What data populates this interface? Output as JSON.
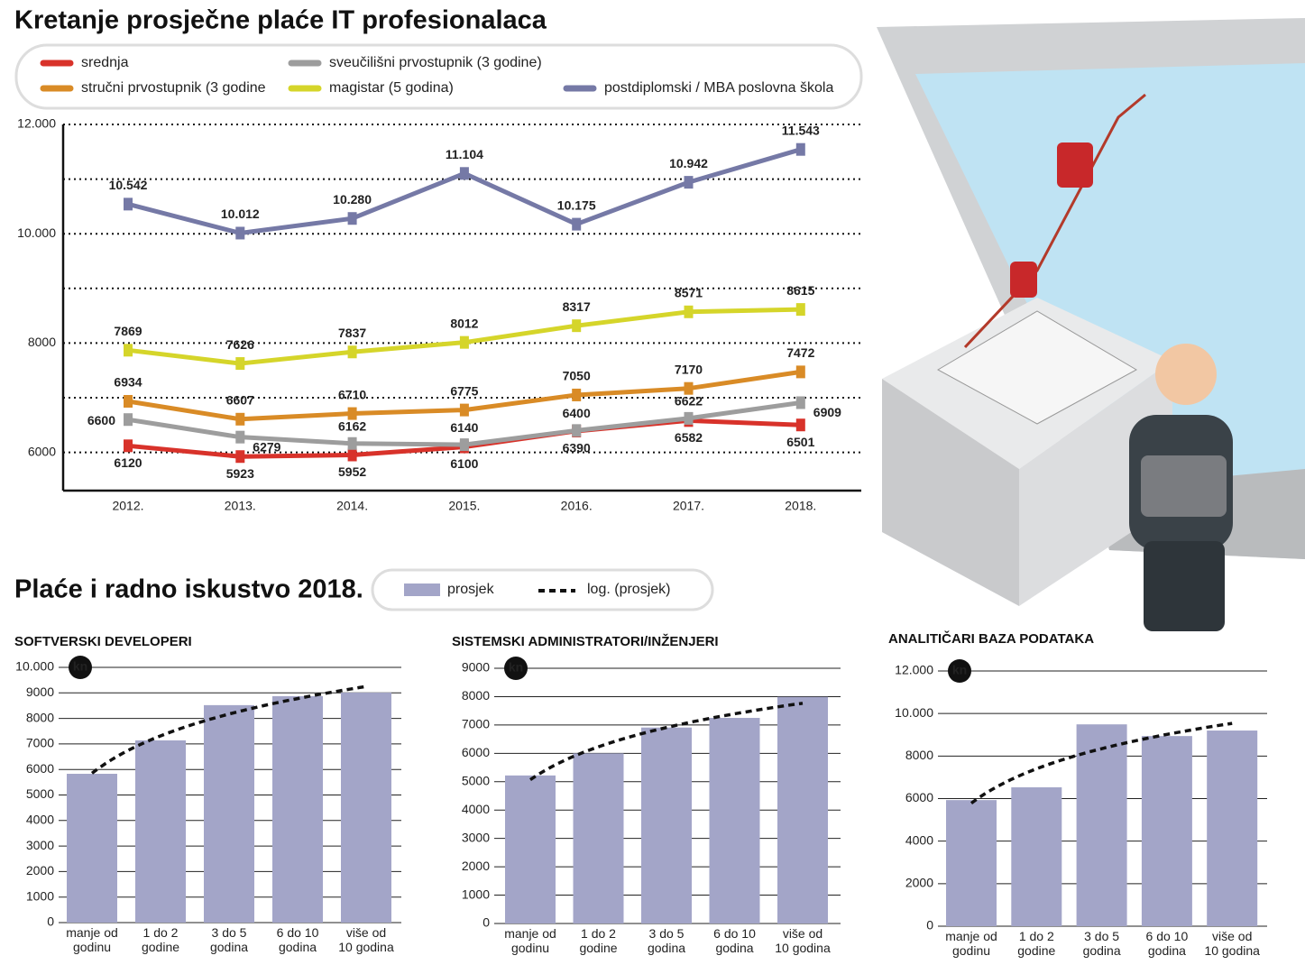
{
  "section": {
    "title": "Plaće i radno iskustvo 2018.",
    "bar_legend": "prosjek",
    "trend_legend": "log. (prosjek)"
  },
  "chart_data": [
    {
      "type": "line",
      "title": "Kretanje prosječne plaće IT profesionalaca",
      "categories": [
        "2012.",
        "2013.",
        "2014.",
        "2015.",
        "2016.",
        "2017.",
        "2018."
      ],
      "series": [
        {
          "name": "srednja",
          "color": "#d8322a",
          "values": [
            6120,
            5923,
            5952,
            6100,
            6390,
            6582,
            6501
          ]
        },
        {
          "name": "stručni prvostupnik (3 godine",
          "color": "#d98b26",
          "values": [
            6934,
            6607,
            6710,
            6775,
            7050,
            7170,
            7472
          ]
        },
        {
          "name": "sveučilišni prvostupnik (3 godine)",
          "color": "#9d9d9d",
          "values": [
            6600,
            6279,
            6162,
            6140,
            6400,
            6622,
            6909
          ]
        },
        {
          "name": "magistar (5 godina)",
          "color": "#d5d52a",
          "values": [
            7869,
            7626,
            7837,
            8012,
            8317,
            8571,
            8615
          ]
        },
        {
          "name": "postdiplomski / MBA poslovna škola",
          "color": "#7579a6",
          "values": [
            10542,
            10012,
            10280,
            11104,
            10175,
            10942,
            11543
          ],
          "value_labels": [
            "10.542",
            "10.012",
            "10.280",
            "11.104",
            "10.175",
            "10.942",
            "11.543"
          ]
        }
      ],
      "ylim": [
        5300,
        12000
      ],
      "yticks": [
        6000,
        8000,
        {
          "value": 10000,
          "label": "10.000"
        },
        {
          "value": 12000,
          "label": "12.000"
        }
      ],
      "minor_yticks": [
        7000,
        9000,
        11000
      ],
      "grid": true
    },
    {
      "type": "bar",
      "title": "SOFTVERSKI DEVELOPERI",
      "unit": "kn",
      "color": "#a3a5c8",
      "trend": "log",
      "categories": [
        "manje od\ngodinu",
        "1 do 2\ngodine",
        "3 do 5\ngodina",
        "6 do 10\ngodina",
        "više od\n10 godina"
      ],
      "values": [
        5830,
        7140,
        8520,
        8870,
        9010
      ],
      "ylim": [
        0,
        10000
      ],
      "yticks": [
        0,
        1000,
        2000,
        3000,
        4000,
        5000,
        6000,
        7000,
        8000,
        9000,
        {
          "value": 10000,
          "label": "10.000"
        }
      ],
      "grid": true
    },
    {
      "type": "bar",
      "title": "SISTEMSKI ADMINISTRATORI/INŽENJERI",
      "unit": "kn",
      "color": "#a3a5c8",
      "trend": "log",
      "categories": [
        "manje od\ngodinu",
        "1 do 2\ngodine",
        "3 do 5\ngodina",
        "6 do 10\ngodina",
        "više od\n10 godina"
      ],
      "values": [
        5220,
        6000,
        6910,
        7250,
        7990
      ],
      "ylim": [
        0,
        9000
      ],
      "yticks": [
        0,
        1000,
        2000,
        3000,
        4000,
        5000,
        6000,
        7000,
        8000,
        9000
      ],
      "grid": true
    },
    {
      "type": "bar",
      "title": "ANALITIČARI BAZA PODATAKA",
      "unit": "kn",
      "color": "#a3a5c8",
      "trend": "log",
      "categories": [
        "manje od\ngodinu",
        "1 do 2\ngodine",
        "3 do 5\ngodina",
        "6 do 10\ngodina",
        "više od\n10 godina"
      ],
      "values": [
        5930,
        6530,
        9490,
        8940,
        9200
      ],
      "ylim": [
        0,
        12000
      ],
      "yticks": [
        0,
        2000,
        4000,
        6000,
        8000,
        {
          "value": 10000,
          "label": "10.000"
        },
        {
          "value": 12000,
          "label": "12.000"
        }
      ],
      "grid": true
    }
  ]
}
